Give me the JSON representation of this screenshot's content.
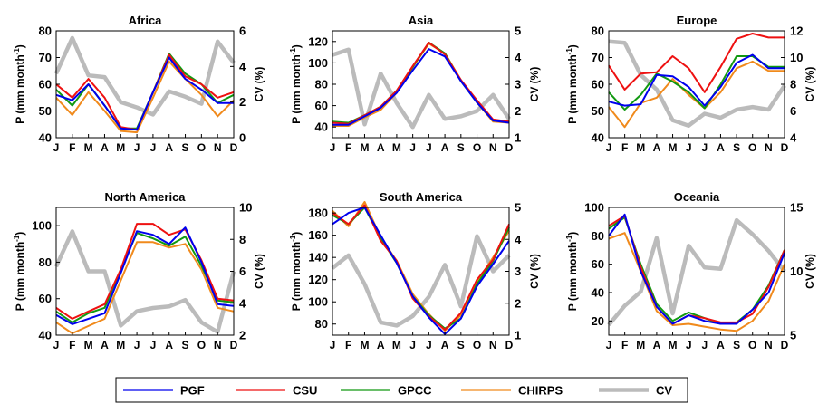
{
  "colors": {
    "PGF": "#0000ee",
    "CSU": "#ee1111",
    "GPCC": "#119911",
    "CHIRPS": "#f08a1c",
    "CV": "#bbbbbb"
  },
  "legend": {
    "placement": "bottom-center",
    "entries": [
      "PGF",
      "CSU",
      "GPCC",
      "CHIRPS",
      "CV"
    ]
  },
  "chart_data": [
    {
      "type": "line",
      "title": "Africa",
      "categories": [
        "J",
        "F",
        "M",
        "A",
        "M",
        "J",
        "J",
        "A",
        "S",
        "O",
        "N",
        "D"
      ],
      "ylabel": "P (mm month-1)",
      "y2label": "CV (%)",
      "ylim": [
        40,
        80
      ],
      "yticks": [
        40,
        50,
        60,
        70,
        80
      ],
      "y2lim": [
        0,
        6
      ],
      "y2ticks": [
        0,
        2,
        4,
        6
      ],
      "series": [
        {
          "name": "PGF",
          "values": [
            56,
            54,
            60,
            52,
            43.5,
            43,
            57,
            70,
            62,
            58,
            53,
            53
          ]
        },
        {
          "name": "CSU",
          "values": [
            60,
            55,
            62,
            55,
            44,
            43,
            57,
            71,
            63,
            60,
            55,
            57
          ]
        },
        {
          "name": "GPCC",
          "values": [
            58,
            52,
            60,
            52,
            43.5,
            43.5,
            57,
            71.5,
            64,
            60,
            53,
            56
          ]
        },
        {
          "name": "CHIRPS",
          "values": [
            55,
            48.5,
            57,
            50,
            42.5,
            42,
            55,
            68.5,
            62,
            56,
            48,
            54
          ]
        }
      ],
      "cv": [
        3.6,
        5.6,
        3.5,
        3.4,
        2.0,
        1.7,
        1.3,
        2.6,
        2.3,
        1.9,
        5.4,
        4.2
      ]
    },
    {
      "type": "line",
      "title": "Asia",
      "categories": [
        "J",
        "F",
        "M",
        "A",
        "M",
        "J",
        "J",
        "A",
        "S",
        "O",
        "N",
        "D"
      ],
      "ylabel": "P (mm month-1)",
      "y2label": "CV (%)",
      "ylim": [
        30,
        130
      ],
      "yticks": [
        40,
        60,
        80,
        100,
        120
      ],
      "y2lim": [
        1,
        5
      ],
      "y2ticks": [
        1,
        2,
        3,
        4,
        5
      ],
      "series": [
        {
          "name": "PGF",
          "values": [
            42,
            42,
            50,
            58,
            72,
            93,
            113,
            106,
            83,
            63,
            46,
            44
          ]
        },
        {
          "name": "CSU",
          "values": [
            44,
            43,
            51,
            59,
            74,
            97,
            119,
            108,
            84,
            65,
            47,
            45
          ]
        },
        {
          "name": "GPCC",
          "values": [
            45,
            44,
            51,
            59,
            74,
            96,
            119,
            109,
            83,
            63,
            46,
            45
          ]
        },
        {
          "name": "CHIRPS",
          "values": [
            41,
            41,
            49,
            56,
            72,
            96,
            118,
            109,
            84,
            63,
            45,
            44
          ]
        }
      ],
      "cv": [
        4.1,
        4.3,
        1.5,
        3.4,
        2.3,
        1.4,
        2.6,
        1.7,
        1.8,
        2.0,
        2.6,
        1.7
      ]
    },
    {
      "type": "line",
      "title": "Europe",
      "categories": [
        "J",
        "F",
        "M",
        "A",
        "M",
        "J",
        "J",
        "A",
        "S",
        "O",
        "N",
        "D"
      ],
      "ylabel": "P (mm month-1)",
      "y2label": "CV (%)",
      "ylim": [
        40,
        80
      ],
      "yticks": [
        40,
        50,
        60,
        70,
        80
      ],
      "y2lim": [
        4,
        12
      ],
      "y2ticks": [
        4,
        6,
        8,
        10,
        12
      ],
      "series": [
        {
          "name": "PGF",
          "values": [
            53.5,
            52,
            52.5,
            63.5,
            63,
            59,
            52,
            59,
            68,
            71,
            66,
            66
          ]
        },
        {
          "name": "CSU",
          "values": [
            67,
            58,
            64,
            64.5,
            70.5,
            66,
            57,
            66.5,
            77,
            79,
            77.5,
            77.5
          ]
        },
        {
          "name": "GPCC",
          "values": [
            57,
            50.5,
            56,
            64,
            61,
            57,
            51,
            60,
            70.5,
            70.5,
            66.5,
            66.5
          ]
        },
        {
          "name": "CHIRPS",
          "values": [
            51.5,
            44,
            53,
            55,
            62,
            56,
            51,
            57,
            66,
            68.5,
            65,
            65
          ]
        }
      ],
      "cv": [
        11.2,
        11.1,
        8.7,
        7.6,
        5.3,
        4.9,
        5.8,
        5.5,
        6.1,
        6.3,
        6.1,
        7.9
      ]
    },
    {
      "type": "line",
      "title": "North America",
      "categories": [
        "J",
        "F",
        "M",
        "A",
        "M",
        "J",
        "J",
        "A",
        "S",
        "O",
        "N",
        "D"
      ],
      "ylabel": "P (mm month-1)",
      "y2label": "CV (%)",
      "ylim": [
        40,
        110
      ],
      "yticks": [
        40,
        60,
        80,
        100
      ],
      "y2lim": [
        2,
        10
      ],
      "y2ticks": [
        2,
        4,
        6,
        8,
        10
      ],
      "series": [
        {
          "name": "PGF",
          "values": [
            51,
            46,
            49,
            52,
            74,
            97,
            95,
            90,
            99,
            80,
            57,
            56
          ]
        },
        {
          "name": "CSU",
          "values": [
            55,
            49,
            53,
            57,
            76,
            101,
            101,
            95,
            98,
            81,
            60,
            59
          ]
        },
        {
          "name": "GPCC",
          "values": [
            53,
            47,
            52,
            55,
            76,
            96,
            93,
            89,
            94,
            78,
            59,
            58
          ]
        },
        {
          "name": "CHIRPS",
          "values": [
            47,
            41,
            45,
            49,
            70,
            91,
            91,
            88,
            90,
            76,
            55,
            53
          ]
        }
      ],
      "cv": [
        6.3,
        8.5,
        6.0,
        6.0,
        2.6,
        3.5,
        3.7,
        3.8,
        4.2,
        2.8,
        2.2,
        6.0
      ]
    },
    {
      "type": "line",
      "title": "South America",
      "categories": [
        "J",
        "F",
        "M",
        "A",
        "M",
        "J",
        "J",
        "A",
        "S",
        "O",
        "N",
        "D"
      ],
      "ylabel": "P (mm month-1)",
      "y2label": "CV (%)",
      "ylim": [
        70,
        185
      ],
      "yticks": [
        80,
        100,
        120,
        140,
        160,
        180
      ],
      "y2lim": [
        1,
        5
      ],
      "y2ticks": [
        1,
        2,
        3,
        4,
        5
      ],
      "series": [
        {
          "name": "PGF",
          "values": [
            170,
            180,
            185,
            160,
            135,
            105,
            86,
            71,
            85,
            114,
            134,
            155
          ]
        },
        {
          "name": "CSU",
          "values": [
            180,
            170,
            187,
            155,
            137,
            103,
            87,
            75,
            90,
            120,
            138,
            170
          ]
        },
        {
          "name": "GPCC",
          "values": [
            178,
            170,
            185,
            157,
            135,
            105,
            88,
            76,
            85,
            116,
            137,
            167
          ]
        },
        {
          "name": "CHIRPS",
          "values": [
            182,
            168,
            190,
            158,
            137,
            107,
            89,
            74,
            88,
            118,
            140,
            164
          ]
        }
      ],
      "cv": [
        3.1,
        3.5,
        2.6,
        1.4,
        1.3,
        1.6,
        2.2,
        3.2,
        1.9,
        4.1,
        3.0,
        3.5
      ]
    },
    {
      "type": "line",
      "title": "Oceania",
      "categories": [
        "J",
        "F",
        "M",
        "A",
        "M",
        "J",
        "J",
        "A",
        "S",
        "O",
        "N",
        "D"
      ],
      "ylabel": "P (mm month-1)",
      "y2label": "CV (%)",
      "ylim": [
        10,
        100
      ],
      "yticks": [
        20,
        40,
        60,
        80,
        100
      ],
      "y2lim": [
        5,
        15
      ],
      "y2ticks": [
        5,
        10,
        15
      ],
      "series": [
        {
          "name": "PGF",
          "values": [
            80,
            95,
            55,
            30,
            18,
            24,
            20,
            18,
            18,
            28,
            40,
            68
          ]
        },
        {
          "name": "CSU",
          "values": [
            87,
            94,
            58,
            30,
            18,
            24,
            22,
            19,
            19,
            25,
            44,
            70
          ]
        },
        {
          "name": "GPCC",
          "values": [
            85,
            93,
            60,
            32,
            20,
            26,
            22,
            18,
            19,
            28,
            45,
            70
          ]
        },
        {
          "name": "CHIRPS",
          "values": [
            78,
            82,
            55,
            27,
            17,
            18,
            16,
            14,
            13,
            20,
            34,
            60
          ]
        }
      ],
      "cv": [
        5.8,
        7.3,
        8.4,
        12.6,
        6.7,
        12.0,
        10.3,
        10.2,
        14.0,
        12.9,
        11.6,
        10.0
      ]
    }
  ]
}
